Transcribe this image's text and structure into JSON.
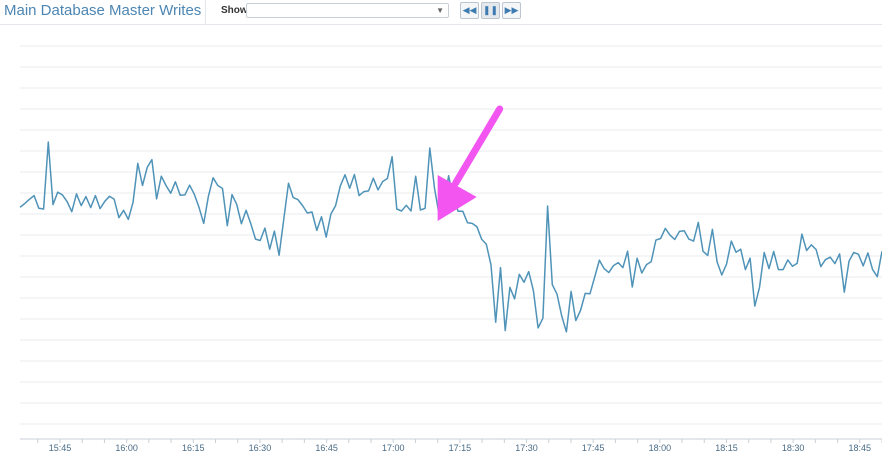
{
  "header": {
    "title": "Main Database Master Writes",
    "show_label": "Show",
    "select_value": ""
  },
  "controls": {
    "rewind_icon": "rewind-icon",
    "pause_icon": "pause-icon",
    "forward_icon": "fast-forward-icon"
  },
  "colors": {
    "line": "#4f93b8",
    "arrow": "#f255f0",
    "grid": "#e8ebee",
    "title": "#4d86b3"
  },
  "chart_data": {
    "type": "line",
    "title": "",
    "xlabel": "",
    "ylabel": "",
    "grid": true,
    "legend": "none",
    "x_range": [
      "15:36",
      "18:50"
    ],
    "y_range": [
      0,
      100
    ],
    "x_ticks": [
      "15:45",
      "16:00",
      "16:15",
      "16:30",
      "16:45",
      "17:00",
      "17:15",
      "17:30",
      "17:45",
      "18:00",
      "18:15",
      "18:30",
      "18:45"
    ],
    "annotation": {
      "type": "arrow",
      "color": "#f255f0",
      "points_to": "17:10"
    },
    "series": [
      {
        "values": [
          61.7,
          62.8,
          64.1,
          65.2,
          61.4,
          61.2,
          81.2,
          62.5,
          66.2,
          65.4,
          63.4,
          60.4,
          65.7,
          62.2,
          64.9,
          61.6,
          65.2,
          61.3,
          63.5,
          65,
          64.1,
          58.6,
          60.8,
          58.1,
          63.1,
          74.8,
          68.2,
          73.6,
          75.9,
          64.2,
          71,
          68.2,
          65.9,
          69.3,
          65.3,
          65.4,
          68.3,
          65.6,
          61.7,
          56.9,
          65,
          70.5,
          68.2,
          67.3,
          56.2,
          65.5,
          62.6,
          56.8,
          60.8,
          56.8,
          52.2,
          51.8,
          55.5,
          49.2,
          54.6,
          47.4,
          58.2,
          68.9,
          64.6,
          64,
          62.2,
          60,
          60.3,
          54.8,
          58.9,
          52.8,
          59.7,
          62.2,
          68.1,
          71.4,
          67.4,
          71.5,
          65.2,
          66.4,
          66.6,
          70.4,
          66.9,
          69.4,
          70.3,
          76.8,
          61.2,
          60.6,
          62.3,
          60.6,
          71,
          60.9,
          61.4,
          79.4,
          67.4,
          59.3,
          62.1,
          71.1,
          64.4,
          60.5,
          60.5,
          57.1,
          56.9,
          55.9,
          52.2,
          50.7,
          44.5,
          27.4,
          43.7,
          24.9,
          37.8,
          34.4,
          41.7,
          39.3,
          42.5,
          36.8,
          25.7,
          28.6,
          62.1,
          38.6,
          35.8,
          29.3,
          24.5,
          36.6,
          27.9,
          30.9,
          36,
          35.9,
          40.9,
          45.9,
          43.4,
          42.2,
          44.3,
          45.2,
          43.7,
          48.6,
          37.9,
          46.5,
          42.1,
          44.6,
          45.5,
          51.9,
          52.4,
          55.4,
          53.4,
          52.1,
          54.5,
          54.7,
          52.2,
          51.6,
          57.2,
          48.6,
          47.3,
          55.1,
          45.4,
          41.5,
          44.8,
          51.6,
          48.3,
          49.2,
          43.1,
          46.5,
          32.2,
          37.8,
          48.2,
          43.4,
          48.5,
          43.1,
          43.1,
          46,
          44.1,
          45,
          53.7,
          48.8,
          50.5,
          49.1,
          44,
          46.1,
          46.8,
          44.9,
          47.8,
          36.4,
          45.6,
          48.2,
          47.7,
          44.2,
          48.1,
          43.1,
          41,
          48.6
        ]
      }
    ]
  }
}
